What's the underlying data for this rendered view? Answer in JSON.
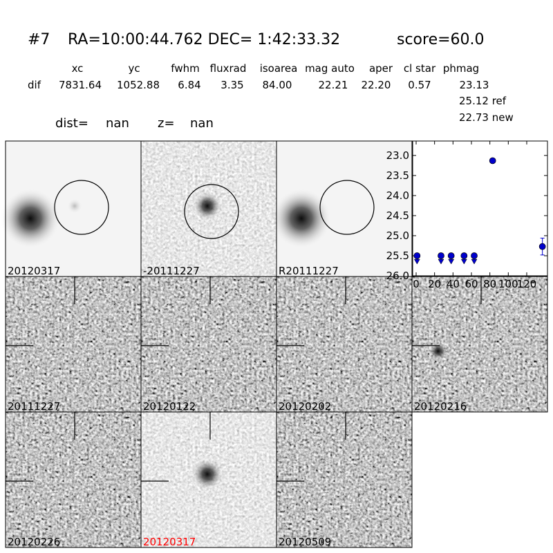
{
  "header": {
    "id": "#7",
    "coords": "RA=10:00:44.762 DEC= 1:42:33.32",
    "score": "score=60.0"
  },
  "table": {
    "columns": [
      "xc",
      "yc",
      "fwhm",
      "fluxrad",
      "isoarea",
      "mag auto",
      "aper",
      "cl star",
      "phmag"
    ],
    "row_label": "dif",
    "values": [
      "7831.64",
      "1052.88",
      "6.84",
      "3.35",
      "84.00",
      "22.21",
      "22.20",
      "0.57",
      "23.13"
    ],
    "ref": "25.12 ref",
    "new": "22.73 new"
  },
  "dist": {
    "dist_label": "dist=",
    "dist_value": "nan",
    "z_label": "z=",
    "z_value": "nan"
  },
  "stamps": [
    "20120317",
    "-20111227",
    "R20111227",
    "20111227",
    "20120122",
    "20120202",
    "20120216",
    "20120226",
    "20120317",
    "20120509"
  ],
  "chart_data": {
    "type": "scatter",
    "xlim": [
      -3.75,
      142.5
    ],
    "ylim": [
      26.0,
      22.64
    ],
    "xticks": [
      0,
      20,
      40,
      60,
      80,
      100,
      120
    ],
    "yticks": [
      {
        "value": 23.0,
        "label": "23.0"
      },
      23.5,
      {
        "value": 24.0,
        "label": "24.0"
      },
      24.5,
      {
        "value": 25.0,
        "label": "25.0"
      },
      25.5,
      {
        "value": 26.0,
        "label": "26.0"
      }
    ],
    "series": [
      {
        "color": "#0000cc",
        "marker": "upper-limit",
        "x": [
          1,
          27,
          38,
          52,
          63
        ],
        "values": [
          25.5,
          25.5,
          25.5,
          25.5,
          25.5
        ]
      },
      {
        "color": "#0000cc",
        "marker": "circle",
        "x": [
          83
        ],
        "values": [
          23.13
        ]
      },
      {
        "color": "#0000cc",
        "marker": "circle",
        "x": [
          137
        ],
        "values": [
          25.27
        ],
        "errors": [
          0.21
        ]
      }
    ]
  }
}
